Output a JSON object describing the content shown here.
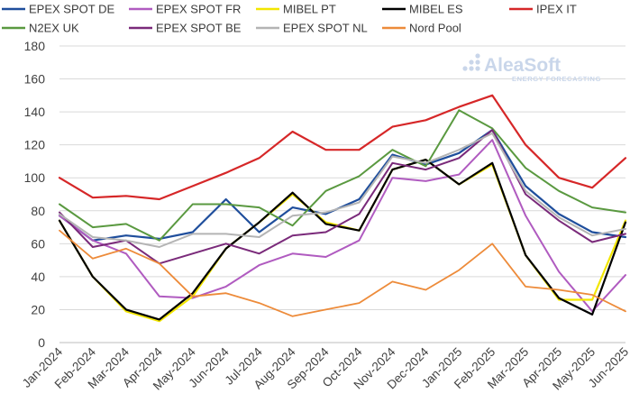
{
  "chart_data": {
    "type": "line",
    "title": "",
    "xlabel": "",
    "ylabel": "",
    "ylim": [
      0,
      180
    ],
    "yticks": [
      0,
      20,
      40,
      60,
      80,
      100,
      120,
      140,
      160,
      180
    ],
    "grid": true,
    "legend_position": "top",
    "categories": [
      "Jan-2024",
      "Feb-2024",
      "Mar-2024",
      "Apr-2024",
      "May-2024",
      "Jun-2024",
      "Jul-2024",
      "Aug-2024",
      "Sep-2024",
      "Oct-2024",
      "Nov-2024",
      "Dec-2024",
      "Jan-2025",
      "Feb-2025",
      "Mar-2025",
      "Apr-2025",
      "May-2025",
      "Jun-2025"
    ],
    "series": [
      {
        "name": "EPEX SPOT DE",
        "color": "#1f4e9c",
        "width": 2.2,
        "values": [
          77,
          62,
          65,
          63,
          67,
          87,
          67,
          82,
          78,
          87,
          114,
          108,
          115,
          129,
          95,
          78,
          67,
          64
        ]
      },
      {
        "name": "EPEX SPOT FR",
        "color": "#b05bc0",
        "width": 2.0,
        "values": [
          77,
          62,
          54,
          28,
          27,
          34,
          47,
          54,
          52,
          62,
          100,
          98,
          102,
          123,
          77,
          43,
          19,
          41
        ]
      },
      {
        "name": "MIBEL PT",
        "color": "#f2e600",
        "width": 2.2,
        "values": [
          74,
          40,
          19,
          13,
          28,
          57,
          73,
          90,
          73,
          68,
          105,
          111,
          96,
          108,
          53,
          26,
          26,
          74
        ]
      },
      {
        "name": "MIBEL ES",
        "color": "#000000",
        "width": 2.2,
        "values": [
          74,
          40,
          20,
          14,
          30,
          57,
          73,
          91,
          72,
          68,
          105,
          111,
          96,
          109,
          53,
          27,
          17,
          73
        ]
      },
      {
        "name": "IPEX IT",
        "color": "#d62728",
        "width": 2.2,
        "values": [
          100,
          88,
          89,
          87,
          95,
          103,
          112,
          128,
          117,
          117,
          131,
          135,
          143,
          150,
          120,
          100,
          94,
          112
        ]
      },
      {
        "name": "N2EX UK",
        "color": "#5a9940",
        "width": 2.0,
        "values": [
          84,
          70,
          72,
          62,
          84,
          84,
          82,
          71,
          92,
          101,
          117,
          107,
          141,
          130,
          106,
          92,
          82,
          79
        ]
      },
      {
        "name": "EPEX SPOT BE",
        "color": "#7a2a7a",
        "width": 2.0,
        "values": [
          79,
          58,
          62,
          48,
          54,
          60,
          54,
          65,
          67,
          78,
          109,
          105,
          112,
          129,
          90,
          74,
          61,
          66
        ]
      },
      {
        "name": "EPEX SPOT NL",
        "color": "#b4b4b4",
        "width": 2.0,
        "values": [
          78,
          64,
          62,
          58,
          66,
          66,
          64,
          77,
          79,
          85,
          113,
          109,
          117,
          127,
          92,
          76,
          65,
          69
        ]
      },
      {
        "name": "Nord Pool",
        "color": "#ed8b3a",
        "width": 1.8,
        "values": [
          68,
          51,
          57,
          48,
          28,
          30,
          24,
          16,
          20,
          24,
          37,
          32,
          44,
          60,
          34,
          32,
          29,
          19
        ]
      }
    ]
  },
  "logo": {
    "name": "AleaSoft",
    "tagline": "ENERGY FORECASTING",
    "color": "#c9d6ea"
  }
}
